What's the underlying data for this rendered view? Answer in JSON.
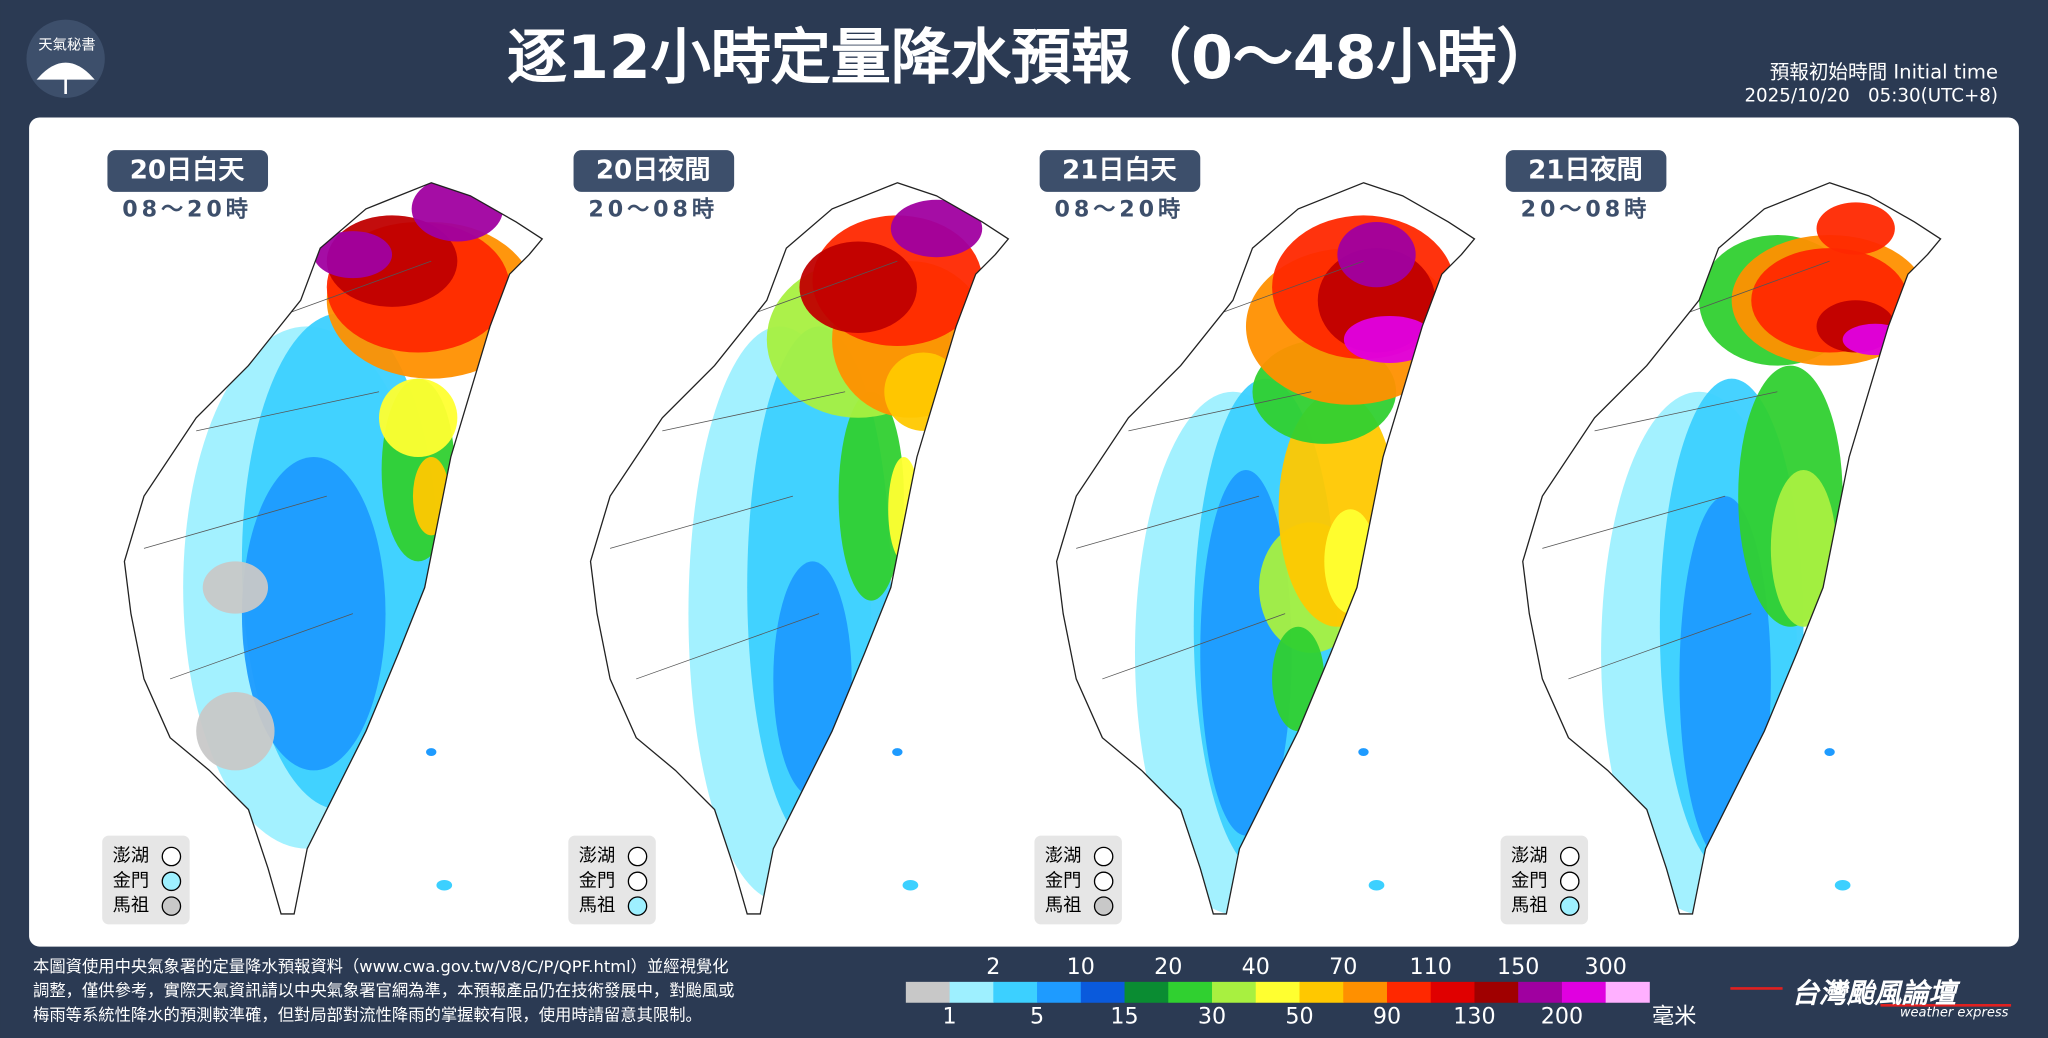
{
  "header": {
    "icon_text": "天氣秘書",
    "title": "逐12小時定量降水預報（0～48小時）",
    "init_label": "預報初始時間 Initial time",
    "init_time": "2025/10/20　05:30(UTC+8)"
  },
  "panels": [
    {
      "day": "20日白天",
      "hours": "08～20時",
      "islands": [
        {
          "name": "澎湖",
          "color": "#ffffff"
        },
        {
          "name": "金門",
          "color": "#9ef0ff"
        },
        {
          "name": "馬祖",
          "color": "#c8c8c8"
        }
      ]
    },
    {
      "day": "20日夜間",
      "hours": "20～08時",
      "islands": [
        {
          "name": "澎湖",
          "color": "#ffffff"
        },
        {
          "name": "金門",
          "color": "#ffffff"
        },
        {
          "name": "馬祖",
          "color": "#9ef0ff"
        }
      ]
    },
    {
      "day": "21日白天",
      "hours": "08～20時",
      "islands": [
        {
          "name": "澎湖",
          "color": "#ffffff"
        },
        {
          "name": "金門",
          "color": "#ffffff"
        },
        {
          "name": "馬祖",
          "color": "#c8c8c8"
        }
      ]
    },
    {
      "day": "21日夜間",
      "hours": "20～08時",
      "islands": [
        {
          "name": "澎湖",
          "color": "#ffffff"
        },
        {
          "name": "金門",
          "color": "#ffffff"
        },
        {
          "name": "馬祖",
          "color": "#9ef0ff"
        }
      ]
    }
  ],
  "footer": {
    "note": [
      "本圖資使用中央氣象署的定量降水預報資料（www.cwa.gov.tw/V8/C/P/QPF.html）並經視覺化",
      "調整，僅供參考，實際天氣資訊請以中央氣象署官網為準，本預報產品仍在技術發展中，對颱風或",
      "梅雨等系統性降水的預測較準確，但對局部對流性降雨的掌握較有限，使用時請留意其限制。"
    ],
    "legend_bounds": [
      1,
      2,
      5,
      10,
      15,
      20,
      30,
      40,
      50,
      70,
      90,
      110,
      130,
      150,
      200,
      300
    ],
    "legend_colors": [
      "#c8c8c8",
      "#9ef0ff",
      "#3cd0ff",
      "#1e9bff",
      "#0a5adc",
      "#0a8c32",
      "#30d030",
      "#a8f040",
      "#ffff30",
      "#ffc800",
      "#ff9000",
      "#ff2800",
      "#e00000",
      "#a00000",
      "#a000a0",
      "#e000e0",
      "#ffb0ff"
    ],
    "unit": "毫米",
    "logo": "台灣颱風論壇",
    "logo_sub": "weather express"
  }
}
